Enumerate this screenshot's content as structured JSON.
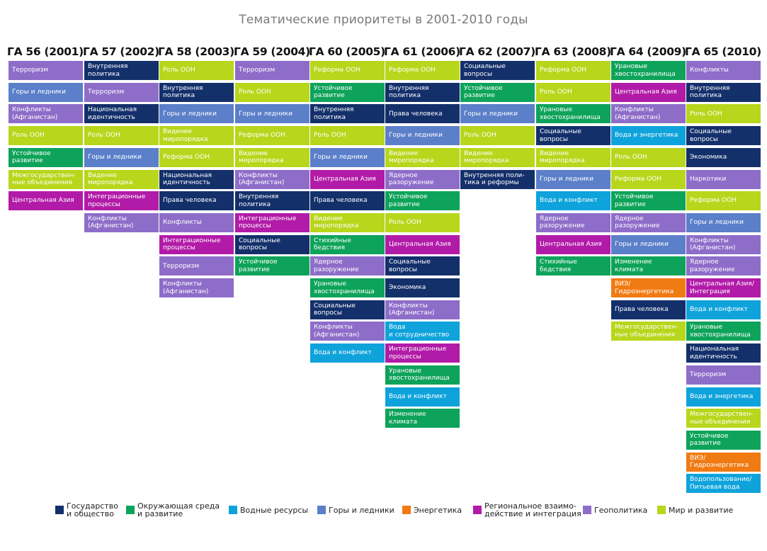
{
  "title": "Тематические приоритеты в 2001-2010 годы",
  "colors": {
    "gos": "#14306b",
    "env": "#0ea35a",
    "water": "#0fa3dc",
    "mount": "#5b7fc9",
    "energy": "#f07b13",
    "reg": "#b21ba8",
    "geo": "#8e6dc9",
    "peace": "#b8d61b"
  },
  "columns": [
    {
      "header": "ГА 56 (2001)",
      "items": [
        {
          "text": "Терроризм",
          "cat": "geo"
        },
        {
          "text": "Горы и ледники",
          "cat": "mount"
        },
        {
          "text": "Конфликты\n(Афганистан)",
          "cat": "geo"
        },
        {
          "text": "Роль ООН",
          "cat": "peace"
        },
        {
          "text": "Устойчивое\nразвитие",
          "cat": "env"
        },
        {
          "text": "Межгосударствен-\nные объединения",
          "cat": "peace"
        },
        {
          "text": "Центральная Азия",
          "cat": "reg"
        }
      ]
    },
    {
      "header": "ГА 57 (2002)",
      "items": [
        {
          "text": "Внутренняя\nполитика",
          "cat": "gos"
        },
        {
          "text": "Терроризм",
          "cat": "geo"
        },
        {
          "text": "Национальная\nидентичность",
          "cat": "gos"
        },
        {
          "text": "Роль ООН",
          "cat": "peace"
        },
        {
          "text": "Горы и ледники",
          "cat": "mount"
        },
        {
          "text": "Видение\nмиропорядка",
          "cat": "peace"
        },
        {
          "text": "Интеграционные\nпроцессы",
          "cat": "reg"
        },
        {
          "text": "Конфликты\n(Афганистан)",
          "cat": "geo"
        }
      ]
    },
    {
      "header": "ГА 58 (2003)",
      "items": [
        {
          "text": "Роль ООН",
          "cat": "peace"
        },
        {
          "text": "Внутренняя\nполитика",
          "cat": "gos"
        },
        {
          "text": "Горы и ледники",
          "cat": "mount"
        },
        {
          "text": "Видение\nмиропорядка",
          "cat": "peace"
        },
        {
          "text": "Реформа ООН",
          "cat": "peace"
        },
        {
          "text": "Национальная\nидентичность",
          "cat": "gos"
        },
        {
          "text": "Права человека",
          "cat": "gos"
        },
        {
          "text": "Конфликты",
          "cat": "geo"
        },
        {
          "text": "Интеграционные\nпроцессы",
          "cat": "reg"
        },
        {
          "text": "Терроризм",
          "cat": "geo"
        },
        {
          "text": "Конфликты\n(Афганистан)",
          "cat": "geo"
        }
      ]
    },
    {
      "header": "ГА 59 (2004)",
      "items": [
        {
          "text": "Терроризм",
          "cat": "geo"
        },
        {
          "text": "Роль ООН",
          "cat": "peace"
        },
        {
          "text": "Горы и ледники",
          "cat": "mount"
        },
        {
          "text": "Реформа ООН",
          "cat": "peace"
        },
        {
          "text": "Видение\nмиропорядка",
          "cat": "peace"
        },
        {
          "text": "Конфликты\n(Афганистан)",
          "cat": "geo"
        },
        {
          "text": "Внутренняя\nполитика",
          "cat": "gos"
        },
        {
          "text": "Интеграционные\nпроцессы",
          "cat": "reg"
        },
        {
          "text": "Социальные\nвопросы",
          "cat": "gos"
        },
        {
          "text": "Устойчивое\nразвитие",
          "cat": "env"
        }
      ]
    },
    {
      "header": "ГА 60 (2005)",
      "items": [
        {
          "text": "Реформа ООН",
          "cat": "peace"
        },
        {
          "text": "Устойчивое\nразвитие",
          "cat": "env"
        },
        {
          "text": "Внутренняя\nполитика",
          "cat": "gos"
        },
        {
          "text": "Роль ООН",
          "cat": "peace"
        },
        {
          "text": "Горы и ледники",
          "cat": "mount"
        },
        {
          "text": "Центральная Азия",
          "cat": "reg"
        },
        {
          "text": "Права человека",
          "cat": "gos"
        },
        {
          "text": "Видение\nмиропорядка",
          "cat": "peace"
        },
        {
          "text": "Стихийные\nбедствия",
          "cat": "env"
        },
        {
          "text": "Ядерное\nразоружение",
          "cat": "geo"
        },
        {
          "text": "Урановые\nхвостохранилища",
          "cat": "env"
        },
        {
          "text": "Социальные\nвопросы",
          "cat": "gos"
        },
        {
          "text": "Конфликты\n(Афганистан)",
          "cat": "geo"
        },
        {
          "text": "Вода и конфликт",
          "cat": "water"
        }
      ]
    },
    {
      "header": "ГА 61 (2006)",
      "items": [
        {
          "text": "Реформа ООН",
          "cat": "peace"
        },
        {
          "text": "Внутренняя\nполитика",
          "cat": "gos"
        },
        {
          "text": "Права человека",
          "cat": "gos"
        },
        {
          "text": "Горы и ледники",
          "cat": "mount"
        },
        {
          "text": "Видение\nмиропорядка",
          "cat": "peace"
        },
        {
          "text": "Ядерное\nразоружение",
          "cat": "geo"
        },
        {
          "text": "Устойчивое\nразвитие",
          "cat": "env"
        },
        {
          "text": "Роль ООН",
          "cat": "peace"
        },
        {
          "text": "Центральная Азия",
          "cat": "reg"
        },
        {
          "text": "Социальные\nвопросы",
          "cat": "gos"
        },
        {
          "text": "Экономика",
          "cat": "gos"
        },
        {
          "text": "Конфликты\n(Афганистан)",
          "cat": "geo"
        },
        {
          "text": "Вода\nи сотрудничество",
          "cat": "water"
        },
        {
          "text": "Интеграционные\nпроцессы",
          "cat": "reg"
        },
        {
          "text": "Урановые\nхвостохранилища",
          "cat": "env"
        },
        {
          "text": "Вода и конфликт",
          "cat": "water"
        },
        {
          "text": "Изменение климата",
          "cat": "env"
        }
      ]
    },
    {
      "header": "ГА 62 (2007)",
      "items": [
        {
          "text": "Социальные\nвопросы",
          "cat": "gos"
        },
        {
          "text": "Устойчивое\nразвитие",
          "cat": "env"
        },
        {
          "text": "Горы и ледники",
          "cat": "mount"
        },
        {
          "text": "Роль ООН",
          "cat": "peace"
        },
        {
          "text": "Видение\nмиропорядка",
          "cat": "peace"
        },
        {
          "text": "Внутренняя поли-\nтика и реформы",
          "cat": "gos"
        }
      ]
    },
    {
      "header": "ГА 63 (2008)",
      "items": [
        {
          "text": "Реформа ООН",
          "cat": "peace"
        },
        {
          "text": "Роль ООН",
          "cat": "peace"
        },
        {
          "text": "Урановые\nхвостохранилища",
          "cat": "env"
        },
        {
          "text": "Социальные\nвопросы",
          "cat": "gos"
        },
        {
          "text": "Видение\nмиропорядка",
          "cat": "peace"
        },
        {
          "text": "Горы и ледники",
          "cat": "mount"
        },
        {
          "text": "Вода и конфликт",
          "cat": "water"
        },
        {
          "text": "Ядерное\nразоружение",
          "cat": "geo"
        },
        {
          "text": "Центральная Азия",
          "cat": "reg"
        },
        {
          "text": "Стихийные\nбедствия",
          "cat": "env"
        }
      ]
    },
    {
      "header": "ГА 64 (2009)",
      "items": [
        {
          "text": "Урановые\nхвостохранилища",
          "cat": "env"
        },
        {
          "text": "Центральная Азия",
          "cat": "reg"
        },
        {
          "text": "Конфликты\n(Афганистан)",
          "cat": "geo"
        },
        {
          "text": "Вода и энергетика",
          "cat": "water"
        },
        {
          "text": "Роль ООН",
          "cat": "peace"
        },
        {
          "text": "Реформа ООН",
          "cat": "peace"
        },
        {
          "text": "Устойчивое\nразвитие",
          "cat": "env"
        },
        {
          "text": "Ядерное\nразоружение",
          "cat": "geo"
        },
        {
          "text": "Горы и ледники",
          "cat": "mount"
        },
        {
          "text": "Изменение климата",
          "cat": "env"
        },
        {
          "text": "ВИЭ/\nГидроэнергетика",
          "cat": "energy"
        },
        {
          "text": "Права человека",
          "cat": "gos"
        },
        {
          "text": "Межгосударствен-\nные объединения",
          "cat": "peace"
        }
      ]
    },
    {
      "header": "ГА 65 (2010)",
      "items": [
        {
          "text": "Конфликты",
          "cat": "geo"
        },
        {
          "text": "Внутренняя\nполитика",
          "cat": "gos"
        },
        {
          "text": "Роль ООН",
          "cat": "peace"
        },
        {
          "text": "Социальные\nвопросы",
          "cat": "gos"
        },
        {
          "text": "Экономика",
          "cat": "gos"
        },
        {
          "text": "Наркотики",
          "cat": "geo"
        },
        {
          "text": "Реформа ООН",
          "cat": "peace"
        },
        {
          "text": "Горы и ледники",
          "cat": "mount"
        },
        {
          "text": "Конфликты\n(Афганистан)",
          "cat": "geo"
        },
        {
          "text": "Ядерное\nразоружение",
          "cat": "geo"
        },
        {
          "text": "Центральная Азия/\nИнтеграция",
          "cat": "reg"
        },
        {
          "text": "Вода и конфликт",
          "cat": "water"
        },
        {
          "text": "Урановые\nхвостохранилища",
          "cat": "env"
        },
        {
          "text": "Национальная\nидентичность",
          "cat": "gos"
        },
        {
          "text": "Терроризм",
          "cat": "geo"
        },
        {
          "text": "Вода и энергетика",
          "cat": "water"
        },
        {
          "text": "Межгосударствен-\nные объединения",
          "cat": "peace"
        },
        {
          "text": "Устойчивое\nразвитие",
          "cat": "env"
        },
        {
          "text": "ВИЭ/\nГидроэнергетика",
          "cat": "energy"
        },
        {
          "text": "Водопользование/\nПитьевая вода",
          "cat": "water"
        }
      ]
    }
  ],
  "legend": [
    {
      "label": "Государство\nи общество",
      "cat": "gos"
    },
    {
      "label": "Окружающая среда\nи развитие",
      "cat": "env"
    },
    {
      "label": "Водные ресурсы",
      "cat": "water"
    },
    {
      "label": "Горы и ледники",
      "cat": "mount"
    },
    {
      "label": "Энергетика",
      "cat": "energy"
    },
    {
      "label": "Региональное взаимо-\nдействие и интеграция",
      "cat": "reg"
    },
    {
      "label": "Геополитика",
      "cat": "geo"
    },
    {
      "label": "Мир и развитие",
      "cat": "peace"
    }
  ]
}
